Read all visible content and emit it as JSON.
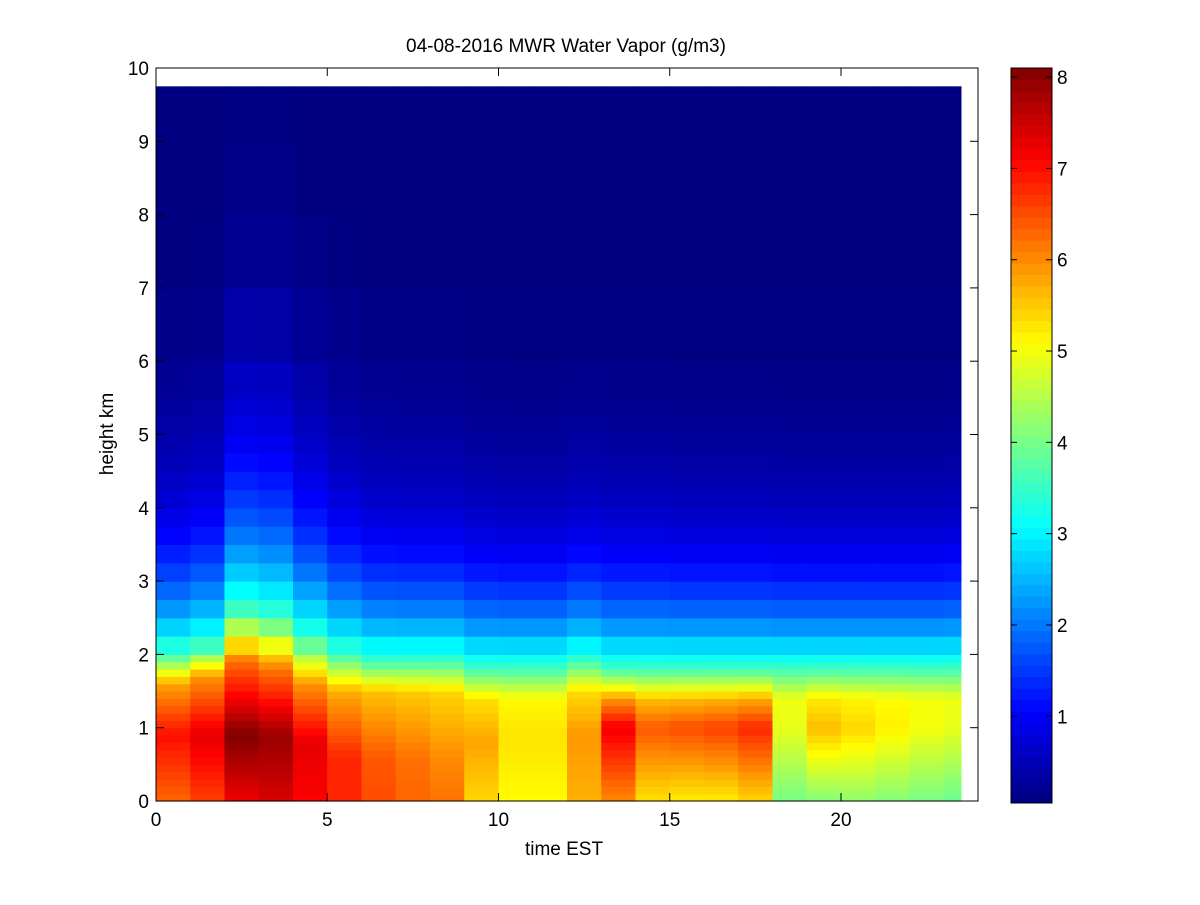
{
  "chart_data": {
    "type": "heatmap",
    "title": "04-08-2016 MWR Water Vapor (g/m3)",
    "xlabel": "time EST",
    "ylabel": "height km",
    "xlim": [
      0,
      24
    ],
    "ylim": [
      0,
      10
    ],
    "x_ticks": [
      0,
      5,
      10,
      15,
      20
    ],
    "y_ticks": [
      0,
      1,
      2,
      3,
      4,
      5,
      6,
      7,
      8,
      9,
      10
    ],
    "colorbar": {
      "colormap": "jet",
      "clim": [
        0.05,
        8.1
      ],
      "ticks": [
        1,
        2,
        3,
        4,
        5,
        6,
        7,
        8
      ]
    },
    "grid": false,
    "x_edges": [
      0,
      1,
      2,
      3,
      4,
      5,
      6,
      7,
      8,
      9,
      10,
      11,
      12,
      13,
      14,
      15,
      16,
      17,
      18,
      19,
      20,
      21,
      22,
      23,
      23.5
    ],
    "y_edges": [
      0,
      0.1,
      0.2,
      0.3,
      0.4,
      0.5,
      0.6,
      0.7,
      0.8,
      0.9,
      1.0,
      1.1,
      1.2,
      1.3,
      1.4,
      1.5,
      1.6,
      1.7,
      1.8,
      1.9,
      2.0,
      2.25,
      2.5,
      2.75,
      3.0,
      3.25,
      3.5,
      3.75,
      4.0,
      4.25,
      4.5,
      4.75,
      5.0,
      5.25,
      5.5,
      6.0,
      7.0,
      8.0,
      9.0,
      9.75
    ],
    "values_note_units": "g/m3",
    "columns": [
      {
        "surface": 6.3,
        "peak": 7.0,
        "peak_h": 0.9,
        "mid_h": 1.6,
        "top_h": 2.0,
        "decay": 0.65
      },
      {
        "surface": 6.6,
        "peak": 7.3,
        "peak_h": 0.9,
        "mid_h": 1.7,
        "top_h": 2.1,
        "decay": 0.62
      },
      {
        "surface": 7.2,
        "peak": 8.1,
        "peak_h": 0.9,
        "mid_h": 1.9,
        "top_h": 2.6,
        "decay": 0.5
      },
      {
        "surface": 7.4,
        "peak": 7.9,
        "peak_h": 0.9,
        "mid_h": 1.8,
        "top_h": 2.5,
        "decay": 0.5
      },
      {
        "surface": 7.1,
        "peak": 7.3,
        "peak_h": 0.8,
        "mid_h": 1.6,
        "top_h": 2.2,
        "decay": 0.56
      },
      {
        "surface": 6.8,
        "peak": 6.8,
        "peak_h": 0.6,
        "mid_h": 1.5,
        "top_h": 2.0,
        "decay": 0.62
      },
      {
        "surface": 6.5,
        "peak": 6.4,
        "peak_h": 0.6,
        "mid_h": 1.5,
        "top_h": 1.9,
        "decay": 0.66
      },
      {
        "surface": 6.3,
        "peak": 6.2,
        "peak_h": 0.6,
        "mid_h": 1.5,
        "top_h": 1.9,
        "decay": 0.68
      },
      {
        "surface": 6.2,
        "peak": 6.0,
        "peak_h": 0.6,
        "mid_h": 1.5,
        "top_h": 1.9,
        "decay": 0.68
      },
      {
        "surface": 5.4,
        "peak": 5.8,
        "peak_h": 0.8,
        "mid_h": 1.4,
        "top_h": 1.8,
        "decay": 0.7
      },
      {
        "surface": 5.1,
        "peak": 5.3,
        "peak_h": 0.9,
        "mid_h": 1.4,
        "top_h": 1.8,
        "decay": 0.72
      },
      {
        "surface": 5.1,
        "peak": 5.3,
        "peak_h": 0.9,
        "mid_h": 1.4,
        "top_h": 1.8,
        "decay": 0.72
      },
      {
        "surface": 5.7,
        "peak": 5.9,
        "peak_h": 0.9,
        "mid_h": 1.5,
        "top_h": 1.9,
        "decay": 0.7
      },
      {
        "surface": 6.0,
        "peak": 7.2,
        "peak_h": 1.0,
        "mid_h": 1.4,
        "top_h": 1.8,
        "decay": 0.7
      },
      {
        "surface": 5.3,
        "peak": 6.4,
        "peak_h": 1.0,
        "mid_h": 1.4,
        "top_h": 1.8,
        "decay": 0.7
      },
      {
        "surface": 5.2,
        "peak": 6.5,
        "peak_h": 1.0,
        "mid_h": 1.4,
        "top_h": 1.8,
        "decay": 0.72
      },
      {
        "surface": 5.2,
        "peak": 6.6,
        "peak_h": 1.0,
        "mid_h": 1.4,
        "top_h": 1.8,
        "decay": 0.72
      },
      {
        "surface": 5.4,
        "peak": 6.8,
        "peak_h": 1.0,
        "mid_h": 1.4,
        "top_h": 1.8,
        "decay": 0.72
      },
      {
        "surface": 4.0,
        "peak": 4.9,
        "peak_h": 1.0,
        "mid_h": 1.4,
        "top_h": 1.8,
        "decay": 0.74
      },
      {
        "surface": 4.1,
        "peak": 5.6,
        "peak_h": 1.0,
        "mid_h": 1.4,
        "top_h": 1.8,
        "decay": 0.74
      },
      {
        "surface": 4.2,
        "peak": 5.4,
        "peak_h": 1.0,
        "mid_h": 1.4,
        "top_h": 1.8,
        "decay": 0.74
      },
      {
        "surface": 4.1,
        "peak": 5.2,
        "peak_h": 1.0,
        "mid_h": 1.4,
        "top_h": 1.8,
        "decay": 0.74
      },
      {
        "surface": 4.0,
        "peak": 5.0,
        "peak_h": 1.0,
        "mid_h": 1.4,
        "top_h": 1.8,
        "decay": 0.74
      },
      {
        "surface": 3.9,
        "peak": 4.9,
        "peak_h": 1.0,
        "mid_h": 1.4,
        "top_h": 1.8,
        "decay": 0.72
      },
      {
        "surface": 3.8,
        "peak": 4.8,
        "peak_h": 1.0,
        "mid_h": 1.4,
        "top_h": 1.8,
        "decay": 0.72
      }
    ]
  }
}
